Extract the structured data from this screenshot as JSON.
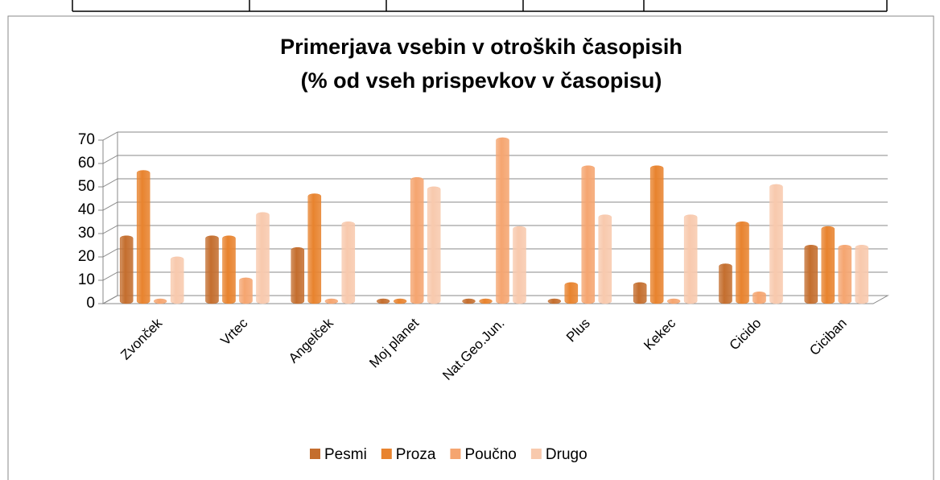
{
  "chart_data": {
    "type": "bar",
    "title": "Primerjava vsebin v otroških časopisih",
    "subtitle": "(% od vseh prispevkov v časopisu)",
    "categories": [
      "Zvonček",
      "Vrtec",
      "Angelček",
      "Moj planet",
      "Nat.Geo.Jun.",
      "Plus",
      "Kekec",
      "Cicido",
      "Ciciban"
    ],
    "series": [
      {
        "name": "Pesmi",
        "color": "#c46e2e",
        "values": [
          27,
          27,
          22,
          0,
          0,
          0,
          7,
          15,
          23
        ]
      },
      {
        "name": "Proza",
        "color": "#e8832e",
        "values": [
          55,
          27,
          45,
          0,
          0,
          7,
          57,
          33,
          31
        ]
      },
      {
        "name": "Poučno",
        "color": "#f5a570",
        "values": [
          0,
          9,
          0,
          52,
          69,
          57,
          0,
          3,
          23
        ]
      },
      {
        "name": "Drugo",
        "color": "#f8c9ad",
        "values": [
          18,
          37,
          33,
          48,
          31,
          36,
          36,
          49,
          23
        ]
      }
    ],
    "ylim": [
      0,
      70
    ],
    "yticks": [
      0,
      10,
      20,
      30,
      40,
      50,
      60,
      70
    ],
    "grid": true,
    "legend": "bottom"
  }
}
